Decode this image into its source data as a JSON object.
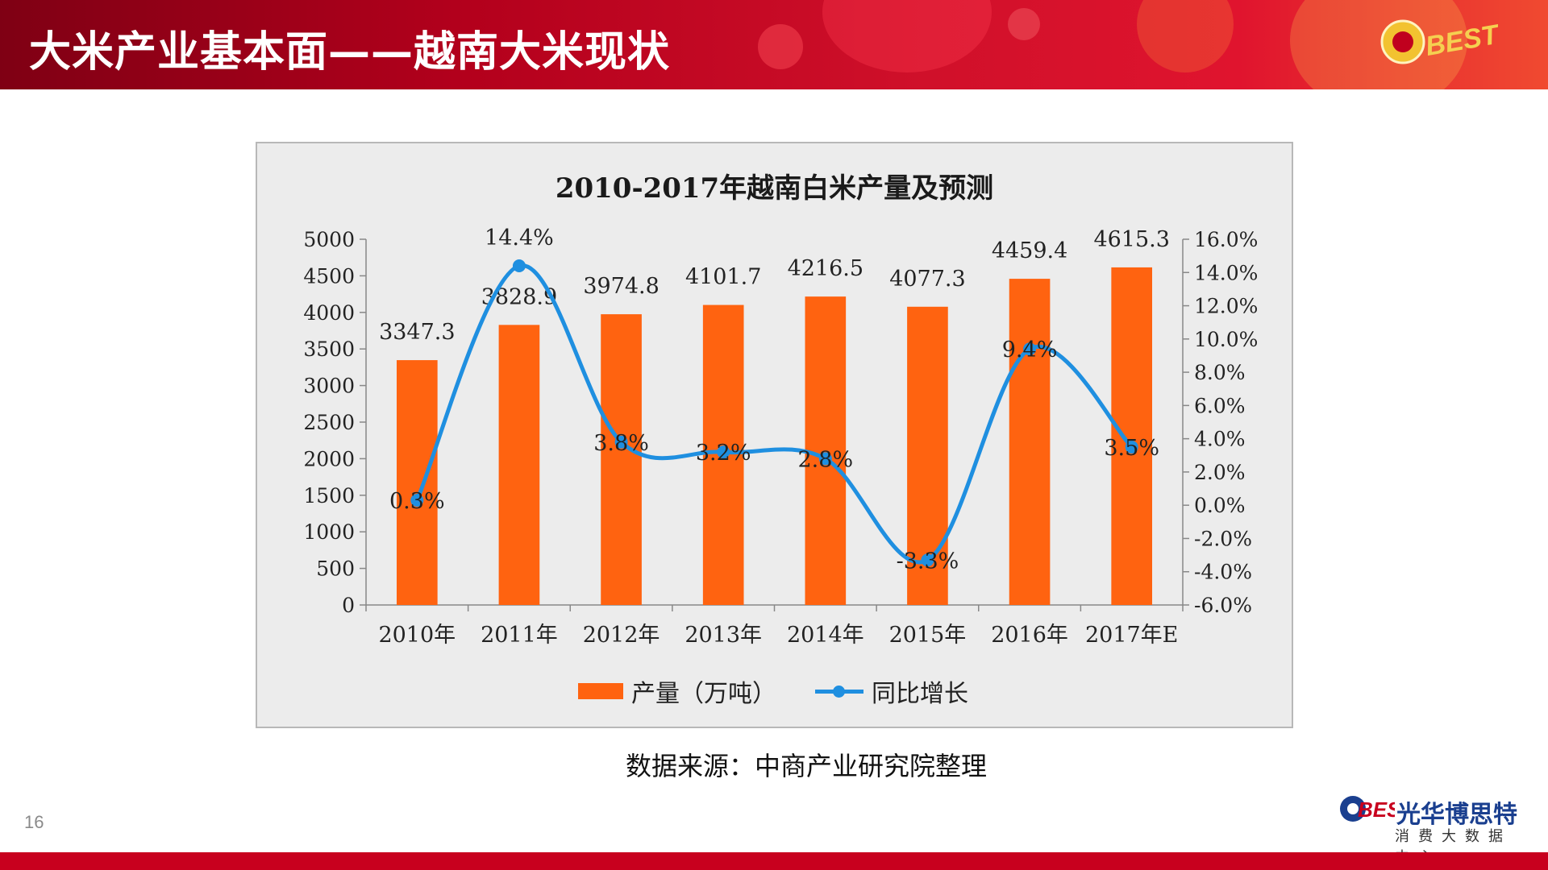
{
  "header": {
    "title": "大米产业基本面——越南大米现状",
    "logo_text": "BEST"
  },
  "chart_data": {
    "type": "bar",
    "title": "2010-2017年越南白米产量及预测",
    "categories": [
      "2010年",
      "2011年",
      "2012年",
      "2013年",
      "2014年",
      "2015年",
      "2016年",
      "2017年E"
    ],
    "series": [
      {
        "name": "产量（万吨）",
        "type": "bar",
        "axis": "left",
        "values": [
          3347.3,
          3828.9,
          3974.8,
          4101.7,
          4216.5,
          4077.3,
          4459.4,
          4615.3
        ],
        "labels": [
          "3347.3",
          "3828.9",
          "3974.8",
          "4101.7",
          "4216.5",
          "4077.3",
          "4459.4",
          "4615.3"
        ],
        "color": "#ff6310"
      },
      {
        "name": "同比增长",
        "type": "line",
        "axis": "right",
        "values": [
          0.3,
          14.4,
          3.8,
          3.2,
          2.8,
          -3.3,
          9.4,
          3.5
        ],
        "labels": [
          "0.3%",
          "14.4%",
          "3.8%",
          "3.2%",
          "2.8%",
          "-3.3%",
          "9.4%",
          "3.5%"
        ],
        "color": "#1f8fe0"
      }
    ],
    "y_left": {
      "min": 0,
      "max": 5000,
      "step": 500,
      "ticks": [
        "0",
        "500",
        "1000",
        "1500",
        "2000",
        "2500",
        "3000",
        "3500",
        "4000",
        "4500",
        "5000"
      ]
    },
    "y_right": {
      "min": -6,
      "max": 16,
      "step": 2,
      "ticks": [
        "-6.0%",
        "-4.0%",
        "-2.0%",
        "0.0%",
        "2.0%",
        "4.0%",
        "6.0%",
        "8.0%",
        "10.0%",
        "12.0%",
        "14.0%",
        "16.0%"
      ]
    },
    "grid": false,
    "legend": "bottom"
  },
  "source": "数据来源：中商产业研究院整理",
  "page_number": "16",
  "brand": {
    "name": "光华博思特",
    "sub": "消费大数据中心",
    "logo_text": "BEST"
  },
  "colors": {
    "header": "#c0001e",
    "bar": "#ff6310",
    "line": "#1f8fe0",
    "footer": "#c8001e"
  }
}
